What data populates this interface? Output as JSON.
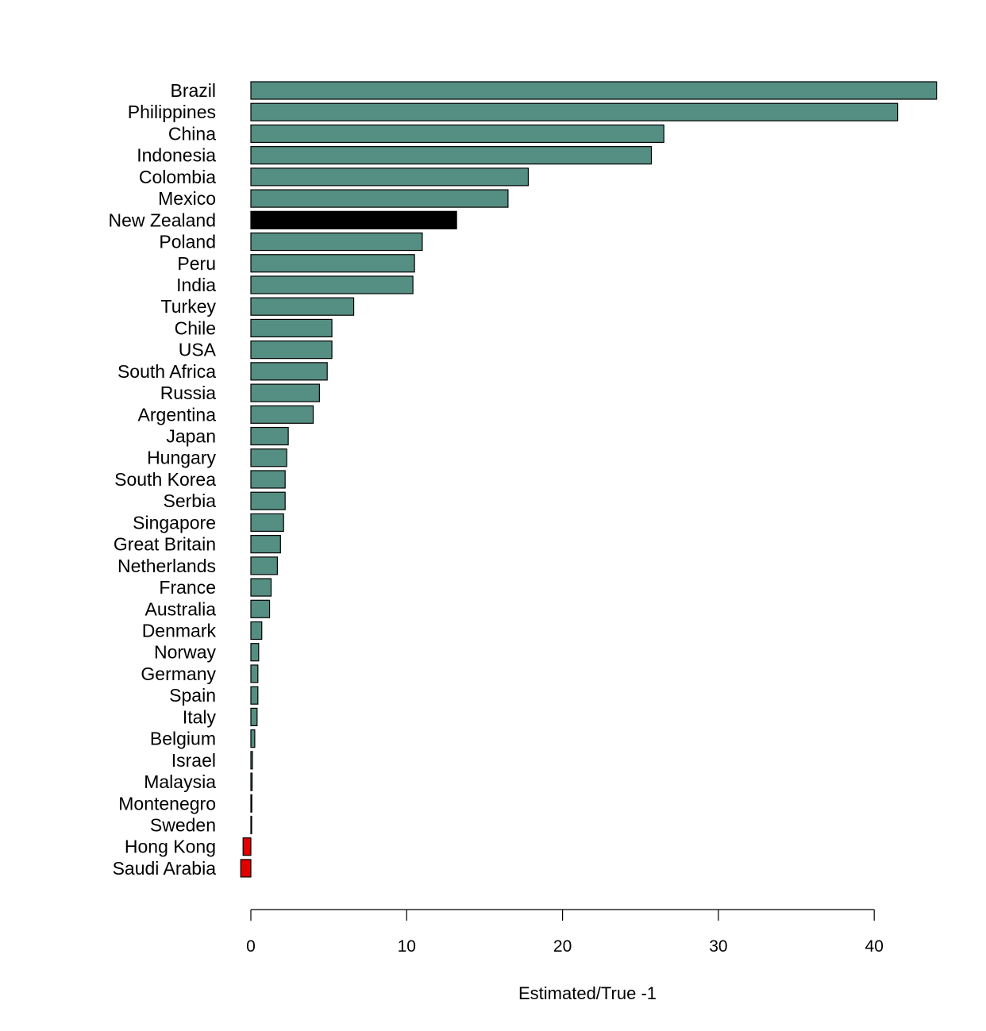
{
  "chart_data": {
    "type": "bar",
    "orientation": "horizontal",
    "xlabel": "Estimated/True -1",
    "ylabel": "",
    "title": "",
    "xlim": [
      0,
      40
    ],
    "xticks": [
      0,
      10,
      20,
      30,
      40
    ],
    "grid": false,
    "colors": {
      "positive": "#558e82",
      "highlight": "#000000",
      "negative": "#e00000",
      "outline": "#000000"
    },
    "highlight_category": "New Zealand",
    "categories": [
      "Brazil",
      "Philippines",
      "China",
      "Indonesia",
      "Colombia",
      "Mexico",
      "New Zealand",
      "Poland",
      "Peru",
      "India",
      "Turkey",
      "Chile",
      "USA",
      "South Africa",
      "Russia",
      "Argentina",
      "Japan",
      "Hungary",
      "South Korea",
      "Serbia",
      "Singapore",
      "Great Britain",
      "Netherlands",
      "France",
      "Australia",
      "Denmark",
      "Norway",
      "Germany",
      "Spain",
      "Italy",
      "Belgium",
      "Israel",
      "Malaysia",
      "Montenegro",
      "Sweden",
      "Hong Kong",
      "Saudi Arabia"
    ],
    "values": [
      44.0,
      41.5,
      26.5,
      25.7,
      17.8,
      16.5,
      13.2,
      11.0,
      10.5,
      10.4,
      6.6,
      5.2,
      5.2,
      4.9,
      4.4,
      4.0,
      2.4,
      2.3,
      2.2,
      2.2,
      2.1,
      1.9,
      1.7,
      1.3,
      1.2,
      0.7,
      0.5,
      0.45,
      0.45,
      0.4,
      0.25,
      0.1,
      0.08,
      0.06,
      0.05,
      -0.5,
      -0.65
    ]
  }
}
